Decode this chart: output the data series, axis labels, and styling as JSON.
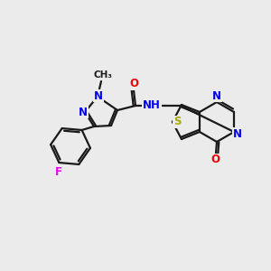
{
  "bg_color": "#ebebeb",
  "bond_color": "#1a1a1a",
  "atom_colors": {
    "N": "#0000ee",
    "O": "#ee0000",
    "S": "#aaaa00",
    "F": "#ee00ee",
    "C": "#1a1a1a",
    "H": "#1a1a1a"
  },
  "font_size": 8.5,
  "fig_size": [
    3.0,
    3.0
  ],
  "dpi": 100,
  "lw": 1.6
}
